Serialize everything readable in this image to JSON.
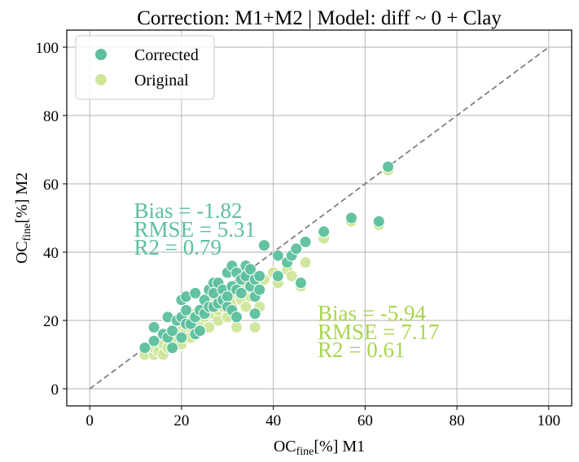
{
  "chart_data": {
    "type": "scatter",
    "title": "Correction: M1+M2 | Model: diff ~ 0 + Clay",
    "xlabel": {
      "main": "OC",
      "sub": "fine",
      "tail": "[%] M1"
    },
    "ylabel": {
      "main": "OC",
      "sub": "fine",
      "tail": "[%] M2"
    },
    "xlim": [
      -5,
      105
    ],
    "ylim": [
      -5,
      105
    ],
    "xticks": [
      0,
      20,
      40,
      60,
      80,
      100
    ],
    "yticks": [
      0,
      20,
      40,
      60,
      80,
      100
    ],
    "grid": true,
    "legend_position": "top-left",
    "reference_line": {
      "x": [
        0,
        100
      ],
      "y": [
        0,
        100
      ],
      "style": "dashed",
      "color": "#808080"
    },
    "series": [
      {
        "name": "Corrected",
        "color": "#5cc09d",
        "points": [
          [
            12,
            12
          ],
          [
            14,
            14
          ],
          [
            14,
            18
          ],
          [
            16,
            16
          ],
          [
            17,
            15
          ],
          [
            17,
            21
          ],
          [
            18,
            12
          ],
          [
            18,
            17
          ],
          [
            19,
            20
          ],
          [
            20,
            21
          ],
          [
            20,
            26
          ],
          [
            20,
            15
          ],
          [
            21,
            19
          ],
          [
            21,
            23
          ],
          [
            21,
            27
          ],
          [
            22,
            19
          ],
          [
            23,
            16
          ],
          [
            23,
            21
          ],
          [
            23,
            28
          ],
          [
            24,
            17
          ],
          [
            24,
            23
          ],
          [
            25,
            26
          ],
          [
            25,
            22
          ],
          [
            26,
            29
          ],
          [
            26,
            24
          ],
          [
            27,
            31
          ],
          [
            27,
            24
          ],
          [
            27,
            28
          ],
          [
            28,
            25
          ],
          [
            28,
            31
          ],
          [
            29,
            29
          ],
          [
            29,
            26
          ],
          [
            30,
            27
          ],
          [
            30,
            34
          ],
          [
            30,
            24
          ],
          [
            31,
            23
          ],
          [
            31,
            30
          ],
          [
            31,
            36
          ],
          [
            32,
            21
          ],
          [
            32,
            34
          ],
          [
            32,
            29
          ],
          [
            33,
            32
          ],
          [
            33,
            28
          ],
          [
            34,
            36
          ],
          [
            34,
            33
          ],
          [
            35,
            30
          ],
          [
            35,
            35
          ],
          [
            36,
            22
          ],
          [
            36,
            32
          ],
          [
            36,
            27
          ],
          [
            37,
            33
          ],
          [
            37,
            29
          ],
          [
            38,
            42
          ],
          [
            41,
            39
          ],
          [
            41,
            33
          ],
          [
            43,
            37
          ],
          [
            44,
            39
          ],
          [
            45,
            41
          ],
          [
            46,
            31
          ],
          [
            47,
            43
          ],
          [
            51,
            46
          ],
          [
            57,
            50
          ],
          [
            63,
            49
          ],
          [
            65,
            65
          ]
        ]
      },
      {
        "name": "Original",
        "color": "#cfe69a",
        "points": [
          [
            12,
            10
          ],
          [
            14,
            10
          ],
          [
            14,
            12
          ],
          [
            15,
            11
          ],
          [
            16,
            13
          ],
          [
            16,
            10
          ],
          [
            17,
            12
          ],
          [
            17,
            16
          ],
          [
            18,
            14
          ],
          [
            18,
            12
          ],
          [
            19,
            16
          ],
          [
            19,
            14
          ],
          [
            20,
            17
          ],
          [
            20,
            13
          ],
          [
            21,
            15
          ],
          [
            21,
            17
          ],
          [
            21,
            20
          ],
          [
            22,
            15
          ],
          [
            22,
            18
          ],
          [
            23,
            16
          ],
          [
            23,
            22
          ],
          [
            24,
            19
          ],
          [
            24,
            17
          ],
          [
            25,
            23
          ],
          [
            25,
            21
          ],
          [
            26,
            18
          ],
          [
            26,
            22
          ],
          [
            27,
            25
          ],
          [
            27,
            22
          ],
          [
            28,
            20
          ],
          [
            28,
            23
          ],
          [
            29,
            26
          ],
          [
            29,
            24
          ],
          [
            30,
            21
          ],
          [
            30,
            27
          ],
          [
            31,
            25
          ],
          [
            31,
            23
          ],
          [
            32,
            18
          ],
          [
            32,
            28
          ],
          [
            33,
            26
          ],
          [
            33,
            30
          ],
          [
            34,
            24
          ],
          [
            34,
            30
          ],
          [
            35,
            27
          ],
          [
            35,
            32
          ],
          [
            36,
            18
          ],
          [
            36,
            28
          ],
          [
            37,
            30
          ],
          [
            37,
            24
          ],
          [
            38,
            32
          ],
          [
            38,
            42
          ],
          [
            40,
            34
          ],
          [
            41,
            31
          ],
          [
            43,
            35
          ],
          [
            44,
            33
          ],
          [
            46,
            30
          ],
          [
            47,
            37
          ],
          [
            51,
            44
          ],
          [
            57,
            49
          ],
          [
            63,
            48
          ],
          [
            65,
            64
          ]
        ]
      }
    ],
    "annotations": [
      {
        "series": "Corrected",
        "color": "#5cc09d",
        "x": 10,
        "lines": [
          "Bias = -1.82",
          "RMSE = 5.31",
          "R2 = 0.79"
        ]
      },
      {
        "series": "Original",
        "color": "#a9d54f",
        "x": 50,
        "lines": [
          "Bias = -5.94",
          "RMSE = 7.17",
          "R2 = 0.61"
        ]
      }
    ]
  }
}
